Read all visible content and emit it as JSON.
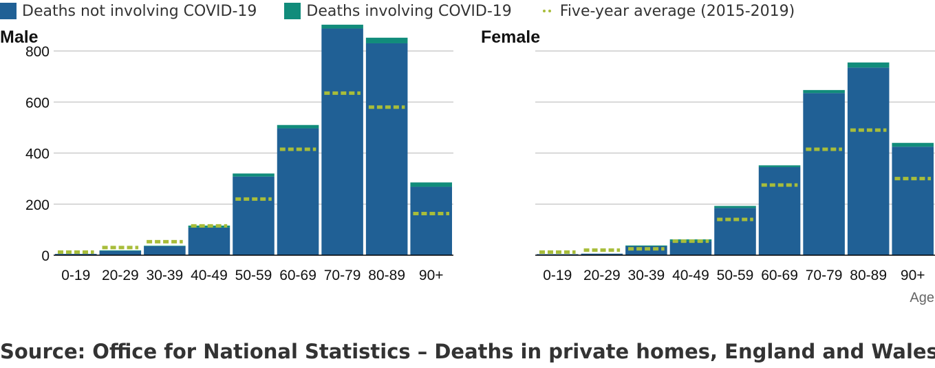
{
  "legend": {
    "not_covid": "Deaths not involving COVID-19",
    "covid": "Deaths involving COVID-19",
    "average": "Five-year average (2015-2019)"
  },
  "colors": {
    "not_covid": "#206095",
    "covid": "#118c7b",
    "average": "#a8bd3a",
    "grid": "#cccccc",
    "axis": "#000000"
  },
  "source": "Source: Office for National Statistics – Deaths in private homes, England and Wales",
  "chart_data": [
    {
      "type": "bar",
      "stacked": true,
      "title": "Male",
      "xlabel": "",
      "ylabel": "",
      "ylim": [
        0,
        900
      ],
      "yticks": [
        0,
        200,
        400,
        600,
        800
      ],
      "grid": true,
      "categories": [
        "0-19",
        "20-29",
        "30-39",
        "40-49",
        "50-59",
        "60-69",
        "70-79",
        "80-89",
        "90+"
      ],
      "series": [
        {
          "name": "Deaths not involving COVID-19",
          "values": [
            5,
            17,
            35,
            108,
            308,
            497,
            888,
            830,
            268
          ]
        },
        {
          "name": "Deaths involving COVID-19",
          "values": [
            0,
            2,
            2,
            8,
            12,
            13,
            15,
            22,
            17
          ]
        }
      ],
      "average": {
        "name": "Five-year average (2015-2019)",
        "values": [
          12,
          30,
          53,
          115,
          220,
          415,
          635,
          580,
          163
        ]
      }
    },
    {
      "type": "bar",
      "stacked": true,
      "title": "Female",
      "xlabel": "Age",
      "ylabel": "",
      "ylim": [
        0,
        900
      ],
      "yticks": [
        0,
        200,
        400,
        600,
        800
      ],
      "grid": true,
      "categories": [
        "0-19",
        "20-29",
        "30-39",
        "40-49",
        "50-59",
        "60-69",
        "70-79",
        "80-89",
        "90+"
      ],
      "series": [
        {
          "name": "Deaths not involving COVID-19",
          "values": [
            4,
            6,
            35,
            55,
            185,
            345,
            635,
            735,
            425
          ]
        },
        {
          "name": "Deaths involving COVID-19",
          "values": [
            0,
            0,
            3,
            7,
            8,
            7,
            12,
            20,
            15
          ]
        }
      ],
      "average": {
        "name": "Five-year average (2015-2019)",
        "values": [
          12,
          20,
          25,
          55,
          140,
          275,
          415,
          490,
          300
        ]
      }
    }
  ]
}
